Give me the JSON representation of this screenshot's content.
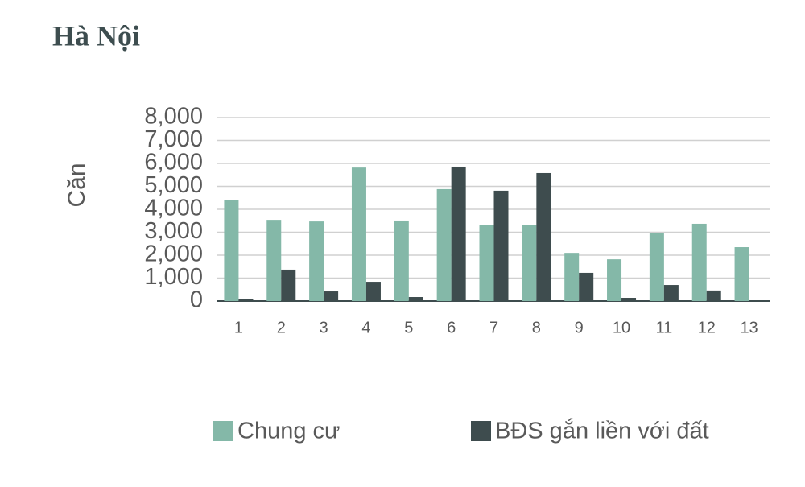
{
  "chart_data": {
    "type": "bar",
    "title": "Hà Nội",
    "y_label": "Căn",
    "categories": [
      "1",
      "2",
      "3",
      "4",
      "5",
      "6",
      "7",
      "8",
      "9",
      "10",
      "11",
      "12",
      "13"
    ],
    "series": [
      {
        "name": "Chung cư",
        "color": "#84b8a8",
        "values": [
          4420,
          3540,
          3470,
          5820,
          3510,
          4880,
          3300,
          3300,
          2100,
          1820,
          2980,
          3370,
          2350
        ]
      },
      {
        "name": "BĐS gắn liền với đất",
        "color": "#3e4c4e",
        "values": [
          100,
          1370,
          420,
          840,
          175,
          5860,
          4810,
          5580,
          1230,
          140,
          700,
          460,
          30
        ]
      }
    ],
    "ylim": [
      0,
      8000
    ],
    "yticks": [
      0,
      {
        "value": 1000,
        "label": "1,000"
      },
      {
        "value": 2000,
        "label": "2,000"
      },
      {
        "value": 3000,
        "label": "3,000"
      },
      {
        "value": 4000,
        "label": "4,000"
      },
      {
        "value": 5000,
        "label": "5,000"
      },
      {
        "value": 6000,
        "label": "6,000"
      },
      {
        "value": 7000,
        "label": "7,000"
      },
      {
        "value": 8000,
        "label": "8,000"
      }
    ],
    "grid": true,
    "legend": "bottom"
  }
}
